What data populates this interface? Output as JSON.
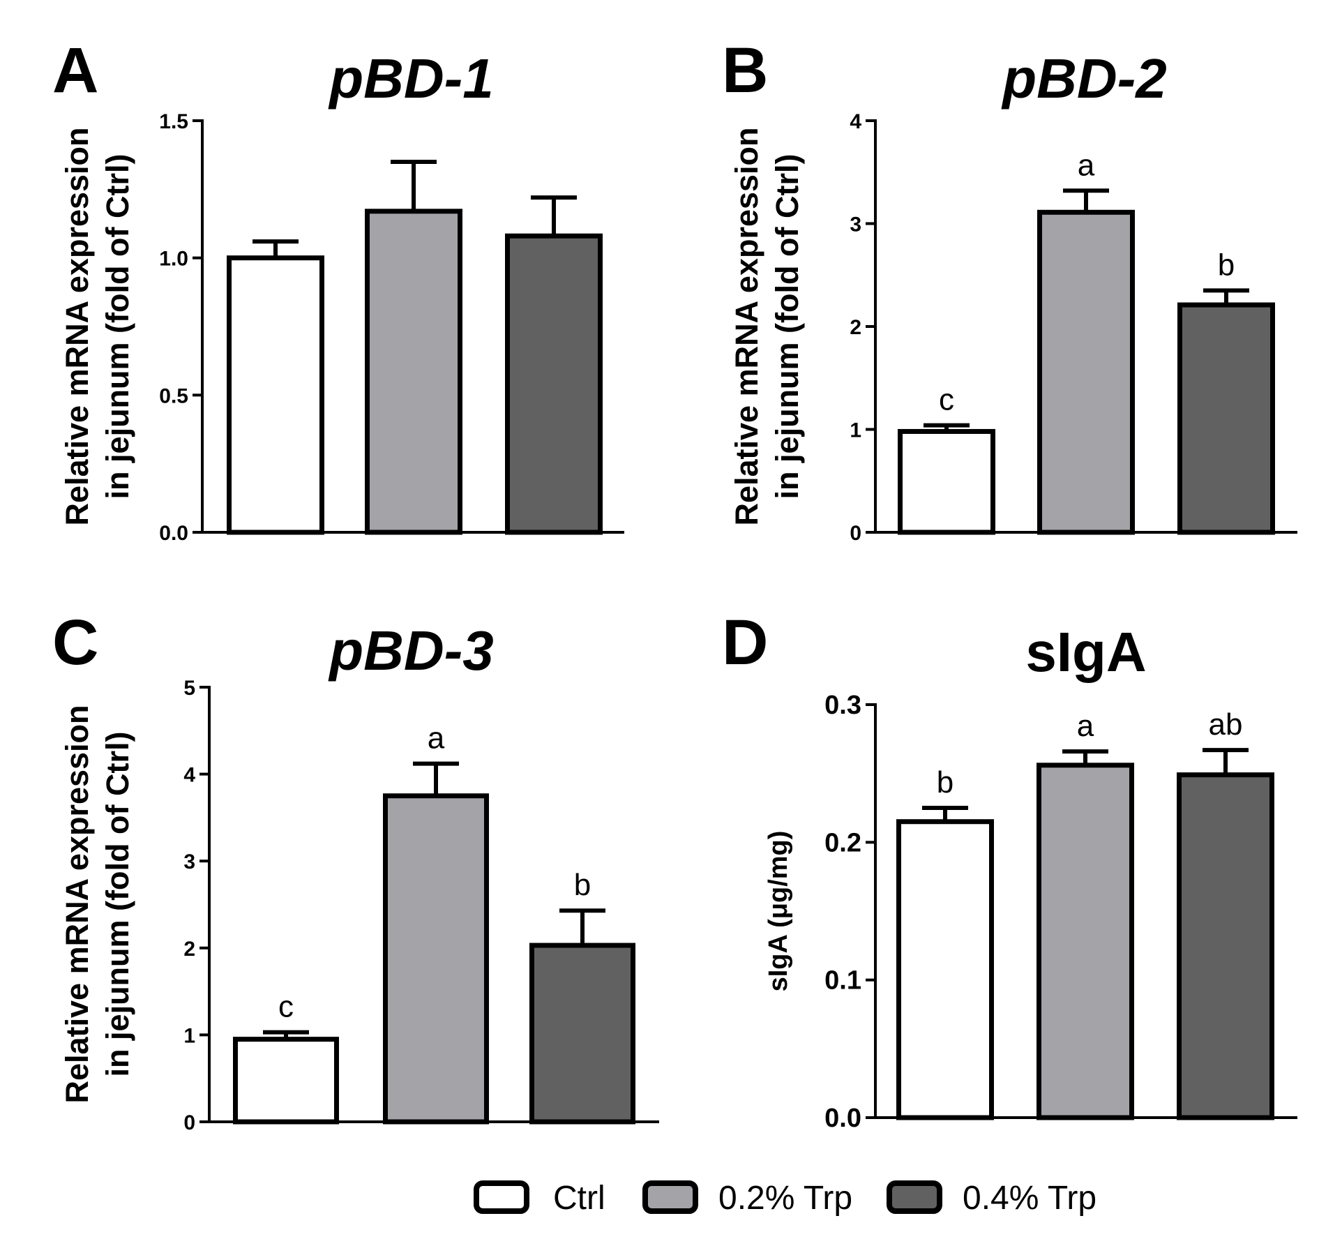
{
  "figure": {
    "colors": {
      "Ctrl": "#ffffff",
      "0.2% Trp": "#a4a3a8",
      "0.4% Trp": "#616161",
      "stroke": "#000000"
    },
    "legend": [
      {
        "label": "Ctrl",
        "color": "#ffffff"
      },
      {
        "label": "0.2% Trp",
        "color": "#a4a3a8"
      },
      {
        "label": "0.4% Trp",
        "color": "#616161"
      }
    ]
  },
  "chart_data": [
    {
      "type": "bar",
      "panel": "A",
      "title": "pBD-1",
      "title_italic": true,
      "ylabel_lines": [
        "Relative mRNA expression",
        "in jejunum (fold of Ctrl)"
      ],
      "categories": [
        "Ctrl",
        "0.2% Trp",
        "0.4% Trp"
      ],
      "values": [
        1.0,
        1.17,
        1.08
      ],
      "errors": [
        0.06,
        0.18,
        0.14
      ],
      "letters": [
        "",
        "",
        ""
      ],
      "ylim": [
        0,
        1.5
      ],
      "yticks": [
        0,
        0.5,
        1.0,
        1.5
      ],
      "yticklabels": [
        "0.0",
        "0.5",
        "1.0",
        "1.5"
      ]
    },
    {
      "type": "bar",
      "panel": "B",
      "title": "pBD-2",
      "title_italic": true,
      "ylabel_lines": [
        "Relative mRNA expression",
        "in jejunum (fold of Ctrl)"
      ],
      "categories": [
        "Ctrl",
        "0.2% Trp",
        "0.4% Trp"
      ],
      "values": [
        0.98,
        3.11,
        2.21
      ],
      "errors": [
        0.06,
        0.21,
        0.14
      ],
      "letters": [
        "c",
        "a",
        "b"
      ],
      "ylim": [
        0,
        4
      ],
      "yticks": [
        0,
        1,
        2,
        3,
        4
      ],
      "yticklabels": [
        "0",
        "1",
        "2",
        "3",
        "4"
      ]
    },
    {
      "type": "bar",
      "panel": "C",
      "title": "pBD-3",
      "title_italic": true,
      "ylabel_lines": [
        "Relative mRNA expression",
        "in jejunum (fold of Ctrl)"
      ],
      "categories": [
        "Ctrl",
        "0.2% Trp",
        "0.4% Trp"
      ],
      "values": [
        0.95,
        3.75,
        2.03
      ],
      "errors": [
        0.08,
        0.37,
        0.4
      ],
      "letters": [
        "c",
        "a",
        "b"
      ],
      "ylim": [
        0,
        5
      ],
      "yticks": [
        0,
        1,
        2,
        3,
        4,
        5
      ],
      "yticklabels": [
        "0",
        "1",
        "2",
        "3",
        "4",
        "5"
      ]
    },
    {
      "type": "bar",
      "panel": "D",
      "title": "sIgA",
      "title_italic": false,
      "ylabel_lines": [
        "sIgA (μg/mg)"
      ],
      "categories": [
        "Ctrl",
        "0.2% Trp",
        "0.4% Trp"
      ],
      "values": [
        0.215,
        0.256,
        0.249
      ],
      "errors": [
        0.01,
        0.01,
        0.018
      ],
      "letters": [
        "b",
        "a",
        "ab"
      ],
      "ylim": [
        0,
        0.3
      ],
      "yticks": [
        0,
        0.1,
        0.2,
        0.3
      ],
      "yticklabels": [
        "0.0",
        "0.1",
        "0.2",
        "0.3"
      ]
    }
  ]
}
